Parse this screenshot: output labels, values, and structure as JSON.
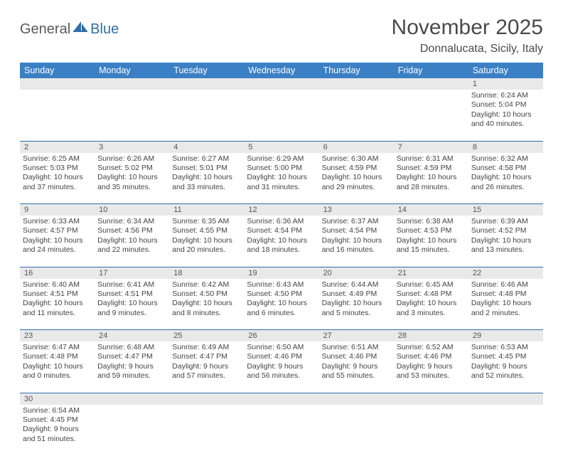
{
  "logo": {
    "text1": "General",
    "text2": "Blue"
  },
  "title": "November 2025",
  "location": "Donnalucata, Sicily, Italy",
  "colors": {
    "header_bg": "#3b7fc4",
    "header_text": "#ffffff",
    "daynum_bg": "#e9e9e9",
    "row_divider": "#2f6fa8",
    "logo_gray": "#5a5a5a",
    "logo_blue": "#2f6fa8"
  },
  "weekdays": [
    "Sunday",
    "Monday",
    "Tuesday",
    "Wednesday",
    "Thursday",
    "Friday",
    "Saturday"
  ],
  "weeks": [
    [
      null,
      null,
      null,
      null,
      null,
      null,
      {
        "n": "1",
        "sr": "Sunrise: 6:24 AM",
        "ss": "Sunset: 5:04 PM",
        "d1": "Daylight: 10 hours",
        "d2": "and 40 minutes."
      }
    ],
    [
      {
        "n": "2",
        "sr": "Sunrise: 6:25 AM",
        "ss": "Sunset: 5:03 PM",
        "d1": "Daylight: 10 hours",
        "d2": "and 37 minutes."
      },
      {
        "n": "3",
        "sr": "Sunrise: 6:26 AM",
        "ss": "Sunset: 5:02 PM",
        "d1": "Daylight: 10 hours",
        "d2": "and 35 minutes."
      },
      {
        "n": "4",
        "sr": "Sunrise: 6:27 AM",
        "ss": "Sunset: 5:01 PM",
        "d1": "Daylight: 10 hours",
        "d2": "and 33 minutes."
      },
      {
        "n": "5",
        "sr": "Sunrise: 6:29 AM",
        "ss": "Sunset: 5:00 PM",
        "d1": "Daylight: 10 hours",
        "d2": "and 31 minutes."
      },
      {
        "n": "6",
        "sr": "Sunrise: 6:30 AM",
        "ss": "Sunset: 4:59 PM",
        "d1": "Daylight: 10 hours",
        "d2": "and 29 minutes."
      },
      {
        "n": "7",
        "sr": "Sunrise: 6:31 AM",
        "ss": "Sunset: 4:59 PM",
        "d1": "Daylight: 10 hours",
        "d2": "and 28 minutes."
      },
      {
        "n": "8",
        "sr": "Sunrise: 6:32 AM",
        "ss": "Sunset: 4:58 PM",
        "d1": "Daylight: 10 hours",
        "d2": "and 26 minutes."
      }
    ],
    [
      {
        "n": "9",
        "sr": "Sunrise: 6:33 AM",
        "ss": "Sunset: 4:57 PM",
        "d1": "Daylight: 10 hours",
        "d2": "and 24 minutes."
      },
      {
        "n": "10",
        "sr": "Sunrise: 6:34 AM",
        "ss": "Sunset: 4:56 PM",
        "d1": "Daylight: 10 hours",
        "d2": "and 22 minutes."
      },
      {
        "n": "11",
        "sr": "Sunrise: 6:35 AM",
        "ss": "Sunset: 4:55 PM",
        "d1": "Daylight: 10 hours",
        "d2": "and 20 minutes."
      },
      {
        "n": "12",
        "sr": "Sunrise: 6:36 AM",
        "ss": "Sunset: 4:54 PM",
        "d1": "Daylight: 10 hours",
        "d2": "and 18 minutes."
      },
      {
        "n": "13",
        "sr": "Sunrise: 6:37 AM",
        "ss": "Sunset: 4:54 PM",
        "d1": "Daylight: 10 hours",
        "d2": "and 16 minutes."
      },
      {
        "n": "14",
        "sr": "Sunrise: 6:38 AM",
        "ss": "Sunset: 4:53 PM",
        "d1": "Daylight: 10 hours",
        "d2": "and 15 minutes."
      },
      {
        "n": "15",
        "sr": "Sunrise: 6:39 AM",
        "ss": "Sunset: 4:52 PM",
        "d1": "Daylight: 10 hours",
        "d2": "and 13 minutes."
      }
    ],
    [
      {
        "n": "16",
        "sr": "Sunrise: 6:40 AM",
        "ss": "Sunset: 4:51 PM",
        "d1": "Daylight: 10 hours",
        "d2": "and 11 minutes."
      },
      {
        "n": "17",
        "sr": "Sunrise: 6:41 AM",
        "ss": "Sunset: 4:51 PM",
        "d1": "Daylight: 10 hours",
        "d2": "and 9 minutes."
      },
      {
        "n": "18",
        "sr": "Sunrise: 6:42 AM",
        "ss": "Sunset: 4:50 PM",
        "d1": "Daylight: 10 hours",
        "d2": "and 8 minutes."
      },
      {
        "n": "19",
        "sr": "Sunrise: 6:43 AM",
        "ss": "Sunset: 4:50 PM",
        "d1": "Daylight: 10 hours",
        "d2": "and 6 minutes."
      },
      {
        "n": "20",
        "sr": "Sunrise: 6:44 AM",
        "ss": "Sunset: 4:49 PM",
        "d1": "Daylight: 10 hours",
        "d2": "and 5 minutes."
      },
      {
        "n": "21",
        "sr": "Sunrise: 6:45 AM",
        "ss": "Sunset: 4:48 PM",
        "d1": "Daylight: 10 hours",
        "d2": "and 3 minutes."
      },
      {
        "n": "22",
        "sr": "Sunrise: 6:46 AM",
        "ss": "Sunset: 4:48 PM",
        "d1": "Daylight: 10 hours",
        "d2": "and 2 minutes."
      }
    ],
    [
      {
        "n": "23",
        "sr": "Sunrise: 6:47 AM",
        "ss": "Sunset: 4:48 PM",
        "d1": "Daylight: 10 hours",
        "d2": "and 0 minutes."
      },
      {
        "n": "24",
        "sr": "Sunrise: 6:48 AM",
        "ss": "Sunset: 4:47 PM",
        "d1": "Daylight: 9 hours",
        "d2": "and 59 minutes."
      },
      {
        "n": "25",
        "sr": "Sunrise: 6:49 AM",
        "ss": "Sunset: 4:47 PM",
        "d1": "Daylight: 9 hours",
        "d2": "and 57 minutes."
      },
      {
        "n": "26",
        "sr": "Sunrise: 6:50 AM",
        "ss": "Sunset: 4:46 PM",
        "d1": "Daylight: 9 hours",
        "d2": "and 56 minutes."
      },
      {
        "n": "27",
        "sr": "Sunrise: 6:51 AM",
        "ss": "Sunset: 4:46 PM",
        "d1": "Daylight: 9 hours",
        "d2": "and 55 minutes."
      },
      {
        "n": "28",
        "sr": "Sunrise: 6:52 AM",
        "ss": "Sunset: 4:46 PM",
        "d1": "Daylight: 9 hours",
        "d2": "and 53 minutes."
      },
      {
        "n": "29",
        "sr": "Sunrise: 6:53 AM",
        "ss": "Sunset: 4:45 PM",
        "d1": "Daylight: 9 hours",
        "d2": "and 52 minutes."
      }
    ],
    [
      {
        "n": "30",
        "sr": "Sunrise: 6:54 AM",
        "ss": "Sunset: 4:45 PM",
        "d1": "Daylight: 9 hours",
        "d2": "and 51 minutes."
      },
      null,
      null,
      null,
      null,
      null,
      null
    ]
  ]
}
